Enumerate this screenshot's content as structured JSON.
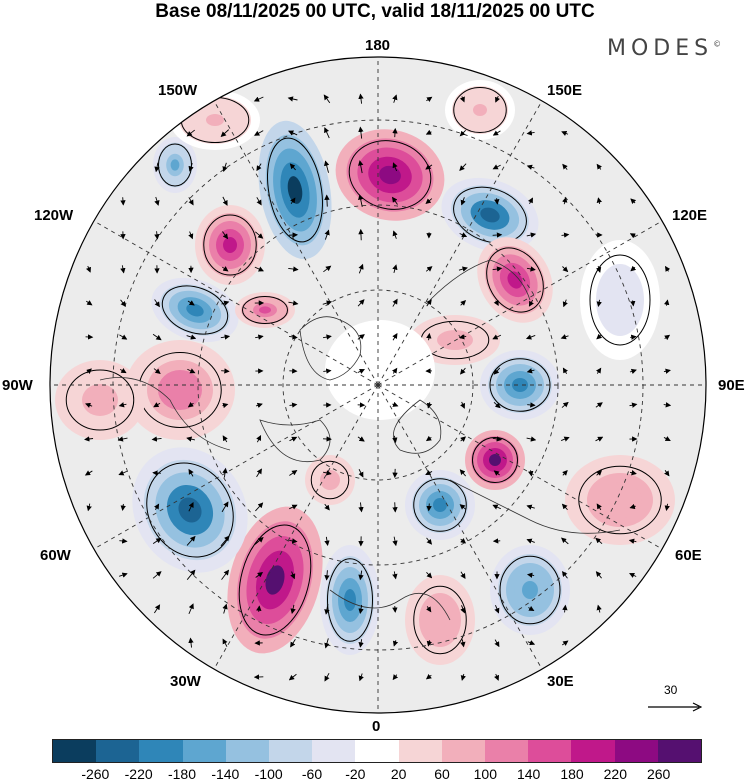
{
  "header": {
    "title": "Base 08/11/2025 00 UTC, valid 18/11/2025 00 UTC",
    "brand": "MODES",
    "brand_mark": "©"
  },
  "map": {
    "longitude_labels": {
      "top": "180",
      "bottom": "0",
      "left": "90W",
      "right": "90E",
      "nw_upper": "150W",
      "nw_lower": "120W",
      "ne_upper": "150E",
      "ne_lower": "120E",
      "sw_upper": "60W",
      "sw_lower": "30W",
      "se_upper": "60E",
      "se_lower": "30E"
    },
    "wind_reference": {
      "value": "30"
    }
  },
  "colorbar": {
    "colors": [
      "#0b3d5e",
      "#1c6493",
      "#2f86b8",
      "#5ea6d0",
      "#95c1e0",
      "#c3d6ea",
      "#e3e4f2",
      "#ffffff",
      "#f6d5d6",
      "#f2afbb",
      "#ea80a9",
      "#dd4d9a",
      "#c0188a",
      "#8d0a82",
      "#551070"
    ],
    "tick_labels": [
      "-260",
      "-220",
      "-180",
      "-140",
      "-100",
      "-60",
      "-20",
      "20",
      "60",
      "100",
      "140",
      "180",
      "220",
      "260"
    ]
  }
}
